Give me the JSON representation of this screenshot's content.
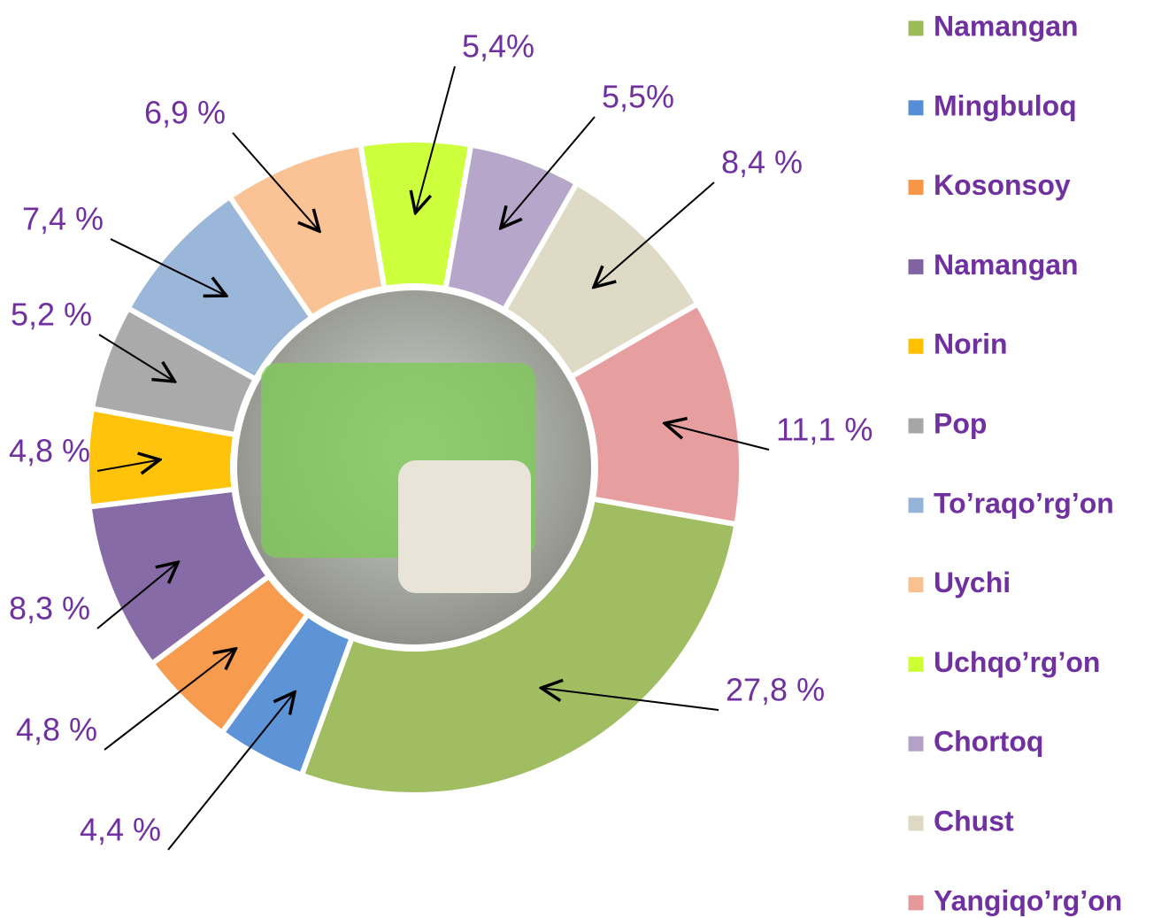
{
  "chart_data": {
    "type": "pie",
    "donut": true,
    "categories": [
      "Namangan",
      "Mingbuloq",
      "Kosonsoy",
      "Namangan",
      "Norin",
      "Pop",
      "To’raqo’rg’on",
      "Uychi",
      "Uchqo’rg’on",
      "Chortoq",
      "Chust",
      "Yangiqo’rg’on"
    ],
    "values": [
      27.8,
      4.4,
      4.8,
      8.3,
      4.8,
      5.2,
      7.4,
      6.9,
      5.4,
      5.5,
      8.4,
      11.1
    ],
    "value_labels": [
      "27,8 %",
      "4,4 %",
      "4,8 %",
      "8,3 %",
      "4,8 %",
      "5,2 %",
      "7,4 %",
      "6,9 %",
      "5,4%",
      "5,5%",
      "8,4 %",
      "11,1 %"
    ],
    "colors": [
      "#9bbb59",
      "#558ed5",
      "#f79646",
      "#8064a2",
      "#ffc000",
      "#a6a6a6",
      "#95b3d7",
      "#fac090",
      "#ccff33",
      "#b3a2c7",
      "#ddd9c3",
      "#e6999a"
    ],
    "legend": "right"
  }
}
